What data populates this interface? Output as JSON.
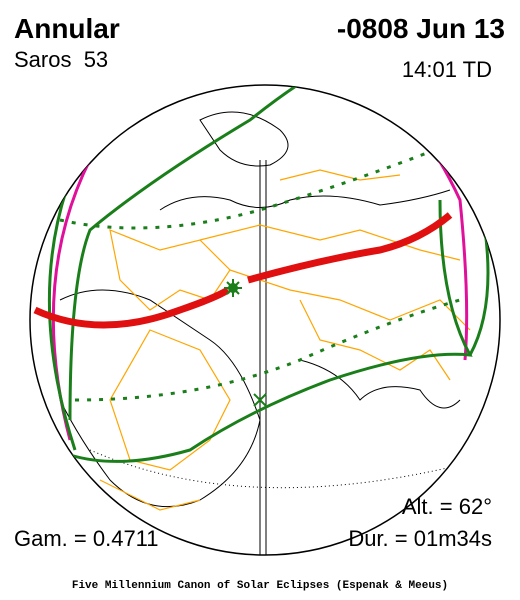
{
  "header": {
    "eclipse_type": "Annular",
    "date": "-0808 Jun 13",
    "saros": "Saros  53",
    "time": "14:01 TD"
  },
  "details": {
    "altitude": "Alt. = 62°",
    "gamma": "Gam. = 0.4711",
    "duration": "Dur. = 01m34s"
  },
  "footer": "Five Millennium Canon of Solar Eclipses (Espenak & Meeus)"
}
